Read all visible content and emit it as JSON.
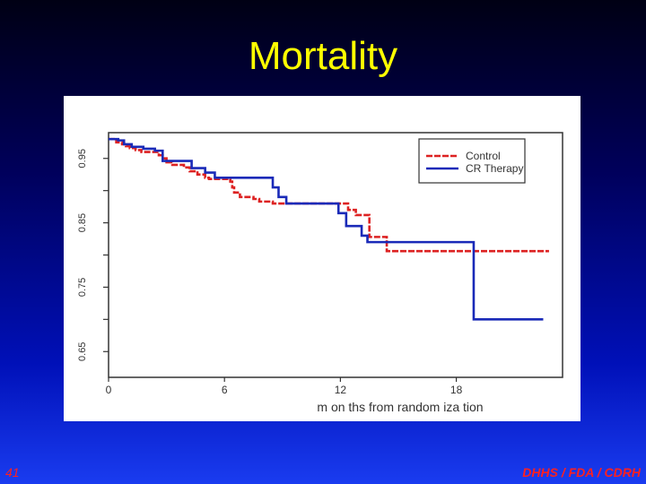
{
  "slide": {
    "title": "Mortality",
    "page_number": "41",
    "footer": "DHHS / FDA / CDRH"
  },
  "colors": {
    "background": "#00005a",
    "title": "#ffff00",
    "footer": "#ff2020",
    "control": "#dd2222",
    "cr_therapy": "#1a2ab8"
  },
  "chart_data": {
    "type": "line",
    "title": "",
    "xlabel": "m on ths  from  random  iza tion",
    "ylabel": "",
    "xlim": [
      0,
      23.5
    ],
    "ylim": [
      0.61,
      0.99
    ],
    "x_ticks": [
      0,
      6,
      12,
      18
    ],
    "x_tick_labels": [
      "0",
      "6",
      "12",
      "18"
    ],
    "y_ticks": [
      0.65,
      0.75,
      0.85,
      0.95
    ],
    "y_tick_labels": [
      "0.65",
      "0.75",
      "0.85",
      "0.95"
    ],
    "y_minor_ticks": [
      0.65,
      0.7,
      0.75,
      0.8,
      0.85,
      0.9,
      0.95
    ],
    "legend_position": "top-right",
    "step": true,
    "series": [
      {
        "name": "Control",
        "color": "#dd2222",
        "dash": "dash",
        "x": [
          0,
          0.4,
          0.7,
          0.9,
          1.1,
          1.4,
          1.7,
          2.0,
          2.6,
          2.8,
          3.0,
          3.3,
          3.9,
          4.2,
          4.6,
          5.0,
          5.2,
          6.3,
          6.4,
          6.5,
          6.8,
          7.5,
          7.8,
          8.5,
          12.4,
          12.8,
          13.5,
          14.4,
          22.8
        ],
        "values": [
          0.98,
          0.975,
          0.972,
          0.969,
          0.966,
          0.963,
          0.96,
          0.96,
          0.955,
          0.95,
          0.944,
          0.94,
          0.936,
          0.93,
          0.925,
          0.92,
          0.918,
          0.914,
          0.905,
          0.897,
          0.89,
          0.887,
          0.883,
          0.88,
          0.87,
          0.862,
          0.828,
          0.806,
          0.806
        ]
      },
      {
        "name": "CR Therapy",
        "color": "#1a2ab8",
        "dash": "solid",
        "x": [
          0,
          0.5,
          0.8,
          1.2,
          1.8,
          2.4,
          2.8,
          4.3,
          5.0,
          5.5,
          8.5,
          8.8,
          9.2,
          11.9,
          12.3,
          13.1,
          13.4,
          18.9,
          22.5
        ],
        "values": [
          0.98,
          0.978,
          0.972,
          0.968,
          0.965,
          0.962,
          0.946,
          0.935,
          0.928,
          0.92,
          0.905,
          0.89,
          0.88,
          0.865,
          0.845,
          0.83,
          0.82,
          0.7,
          0.7
        ]
      }
    ]
  }
}
